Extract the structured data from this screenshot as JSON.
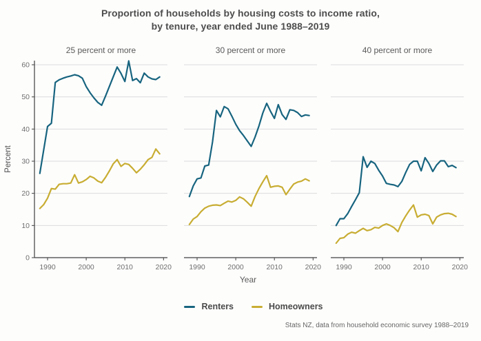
{
  "title": {
    "line1": "Proportion of households by housing costs to income ratio,",
    "line2": "by tenure, year ended June 1988–2019"
  },
  "source": "Stats NZ, data from household economic survey 1988–2019",
  "colors": {
    "renters": "#17647F",
    "homeowners": "#C8AD32",
    "grid": "#DCDCDC",
    "axis": "#3F3F3F",
    "tick_text": "#6E6E6E",
    "title_text": "#4D4D4D",
    "panel_title_text": "#595959"
  },
  "legend": [
    {
      "label": "Renters",
      "color_key": "renters"
    },
    {
      "label": "Homeowners",
      "color_key": "homeowners"
    }
  ],
  "chart_data": {
    "type": "line",
    "title": "Proportion of households by housing costs to income ratio, by tenure, year ended June 1988–2019",
    "xlabel": "Year",
    "ylabel": "Percent",
    "x": [
      1988,
      1989,
      1990,
      1991,
      1992,
      1993,
      1994,
      1995,
      1996,
      1997,
      1998,
      1999,
      2000,
      2001,
      2002,
      2003,
      2004,
      2005,
      2006,
      2007,
      2008,
      2009,
      2010,
      2011,
      2012,
      2013,
      2014,
      2015,
      2016,
      2017,
      2018,
      2019
    ],
    "x_ticks": [
      1990,
      2000,
      2010,
      2020
    ],
    "y_ticks": [
      0,
      10,
      20,
      30,
      40,
      50,
      60
    ],
    "ylim": [
      0,
      62
    ],
    "grid": true,
    "legend_position": "bottom",
    "panels": [
      {
        "title": "25 percent or more",
        "series": [
          {
            "name": "Renters",
            "values": [
              26.2,
              33.5,
              40.8,
              41.8,
              54.5,
              55.3,
              55.8,
              56.2,
              56.5,
              56.9,
              56.6,
              55.8,
              53.2,
              51.3,
              49.7,
              48.3,
              47.4,
              50.3,
              53.3,
              56.3,
              59.3,
              57.3,
              54.8,
              61.2,
              55.1,
              55.7,
              54.4,
              57.4,
              56.2,
              55.6,
              55.4,
              56.2
            ]
          },
          {
            "name": "Homeowners",
            "values": [
              15.3,
              16.5,
              18.5,
              21.5,
              21.3,
              22.8,
              23.0,
              23.0,
              23.2,
              25.8,
              23.2,
              23.6,
              24.3,
              25.3,
              24.8,
              23.8,
              23.3,
              25.0,
              27.0,
              29.2,
              30.5,
              28.4,
              29.3,
              29.0,
              27.8,
              26.4,
              27.5,
              28.9,
              30.5,
              31.2,
              33.8,
              32.3
            ]
          }
        ]
      },
      {
        "title": "30 percent or more",
        "series": [
          {
            "name": "Renters",
            "values": [
              19.0,
              22.3,
              24.5,
              24.8,
              28.5,
              28.8,
              36.0,
              45.8,
              43.8,
              47.0,
              46.3,
              44.0,
              41.5,
              39.5,
              38.0,
              36.3,
              34.6,
              37.5,
              41.0,
              45.0,
              48.0,
              45.5,
              43.3,
              47.6,
              44.5,
              43.0,
              46.0,
              45.8,
              45.1,
              43.9,
              44.4,
              44.2
            ]
          },
          {
            "name": "Homeowners",
            "values": [
              10.3,
              12.0,
              12.8,
              14.3,
              15.4,
              16.0,
              16.3,
              16.4,
              16.2,
              16.9,
              17.6,
              17.3,
              17.8,
              18.9,
              18.3,
              17.2,
              16.0,
              19.0,
              21.5,
              23.6,
              25.5,
              21.9,
              22.2,
              22.3,
              21.9,
              19.6,
              21.3,
              22.9,
              23.5,
              23.8,
              24.5,
              23.9
            ]
          }
        ]
      },
      {
        "title": "40 percent or more",
        "series": [
          {
            "name": "Renters",
            "values": [
              10.0,
              12.1,
              12.1,
              13.7,
              15.9,
              18.0,
              20.2,
              31.4,
              28.1,
              30.0,
              29.3,
              27.2,
              25.4,
              23.1,
              22.8,
              22.6,
              22.1,
              23.7,
              26.5,
              29.0,
              30.0,
              30.0,
              27.0,
              31.1,
              29.3,
              26.8,
              28.8,
              30.1,
              30.1,
              28.3,
              28.7,
              28.0
            ]
          },
          {
            "name": "Homeowners",
            "values": [
              4.5,
              6.0,
              6.2,
              7.3,
              7.9,
              7.6,
              8.4,
              9.1,
              8.4,
              8.7,
              9.4,
              9.2,
              10.0,
              10.5,
              10.0,
              9.3,
              8.1,
              10.9,
              13.0,
              14.8,
              16.4,
              12.6,
              13.3,
              13.5,
              13.1,
              10.5,
              12.6,
              13.3,
              13.7,
              13.8,
              13.5,
              12.8
            ]
          }
        ]
      }
    ]
  }
}
